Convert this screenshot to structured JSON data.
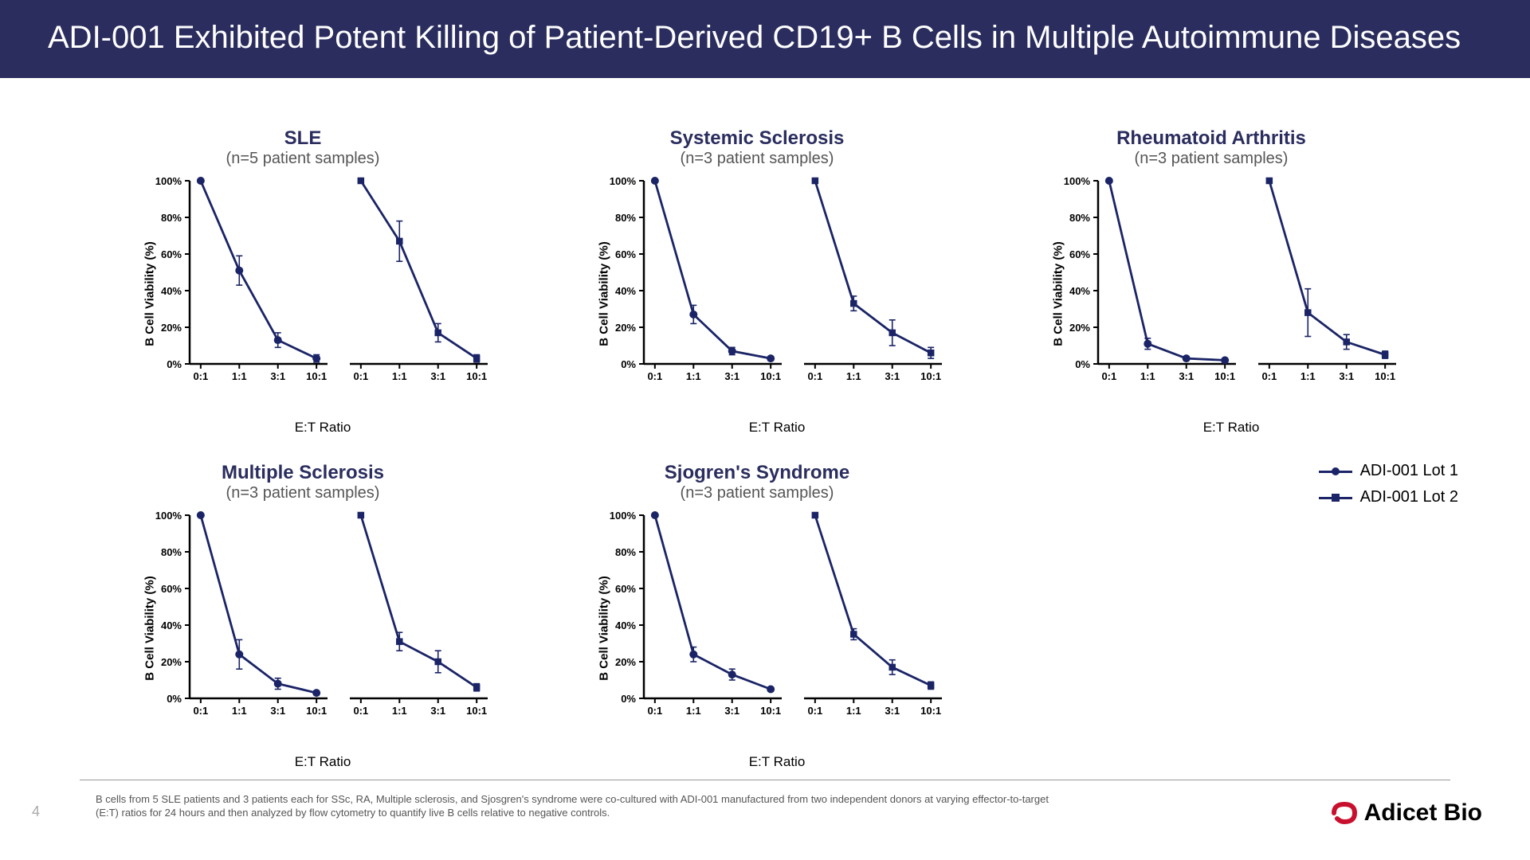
{
  "header": {
    "title": "ADI-001 Exhibited Potent Killing of Patient-Derived CD19+ B Cells in Multiple Autoimmune Diseases"
  },
  "global": {
    "y_label": "B Cell Viability (%)",
    "x_label": "E:T Ratio",
    "y_ticks": [
      0,
      20,
      40,
      60,
      80,
      100
    ],
    "y_tick_labels": [
      "0%",
      "20%",
      "40%",
      "60%",
      "80%",
      "100%"
    ],
    "x_tick_labels": [
      "0:1",
      "1:1",
      "3:1",
      "10:1"
    ],
    "line_color": "#1a2466",
    "axis_color": "#000000",
    "tick_font_size": 13,
    "axis_line_width": 2.5,
    "data_line_width": 2.8,
    "marker_size": 5,
    "ylim": [
      0,
      105
    ],
    "background": "#ffffff"
  },
  "legend": {
    "items": [
      {
        "label": "ADI-001 Lot 1",
        "marker": "circle"
      },
      {
        "label": "ADI-001 Lot 2",
        "marker": "square"
      }
    ]
  },
  "charts": [
    {
      "title": "SLE",
      "subtitle": "(n=5 patient samples)",
      "series": [
        {
          "marker": "circle",
          "y": [
            100,
            51,
            13,
            3
          ],
          "err": [
            0,
            8,
            4,
            2
          ]
        },
        {
          "marker": "square",
          "y": [
            100,
            67,
            17,
            3
          ],
          "err": [
            0,
            11,
            5,
            2
          ]
        }
      ]
    },
    {
      "title": "Systemic Sclerosis",
      "subtitle": "(n=3 patient samples)",
      "series": [
        {
          "marker": "circle",
          "y": [
            100,
            27,
            7,
            3
          ],
          "err": [
            0,
            5,
            2,
            1
          ]
        },
        {
          "marker": "square",
          "y": [
            100,
            33,
            17,
            6
          ],
          "err": [
            0,
            4,
            7,
            3
          ]
        }
      ]
    },
    {
      "title": "Rheumatoid Arthritis",
      "subtitle": "(n=3 patient samples)",
      "series": [
        {
          "marker": "circle",
          "y": [
            100,
            11,
            3,
            2
          ],
          "err": [
            0,
            3,
            1,
            1
          ]
        },
        {
          "marker": "square",
          "y": [
            100,
            28,
            12,
            5
          ],
          "err": [
            0,
            13,
            4,
            2
          ]
        }
      ]
    },
    {
      "title": "Multiple Sclerosis",
      "subtitle": "(n=3 patient samples)",
      "series": [
        {
          "marker": "circle",
          "y": [
            100,
            24,
            8,
            3
          ],
          "err": [
            0,
            8,
            3,
            1
          ]
        },
        {
          "marker": "square",
          "y": [
            100,
            31,
            20,
            6
          ],
          "err": [
            0,
            5,
            6,
            2
          ]
        }
      ]
    },
    {
      "title": "Sjogren's Syndrome",
      "subtitle": "(n=3 patient samples)",
      "series": [
        {
          "marker": "circle",
          "y": [
            100,
            24,
            13,
            5
          ],
          "err": [
            0,
            4,
            3,
            1
          ]
        },
        {
          "marker": "square",
          "y": [
            100,
            35,
            17,
            7
          ],
          "err": [
            0,
            3,
            4,
            2
          ]
        }
      ]
    }
  ],
  "footnote": "B cells from 5 SLE patients and 3 patients each for SSc, RA, Multiple sclerosis, and Sjosgren's syndrome were co-cultured with ADI-001 manufactured from two independent donors at varying effector-to-target (E:T) ratios for 24 hours and then analyzed by flow cytometry to quantify live B cells relative to negative controls.",
  "page_number": "4",
  "logo_text": "Adicet Bio"
}
